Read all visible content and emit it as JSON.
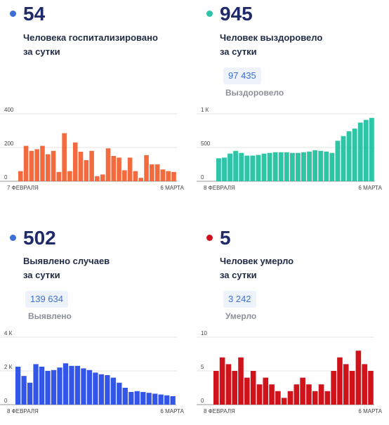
{
  "panels": [
    {
      "number": "54",
      "caption1": "Человека госпитализировано",
      "caption2": "за сутки",
      "dot_color": "#3b6fd6",
      "bar_color": "#f26a3d"
    },
    {
      "number": "945",
      "caption1": "Человек выздоровело",
      "caption2": "за сутки",
      "total": "97 435",
      "total_label": "Выздоровело",
      "dot_color": "#2ec4a6",
      "bar_color": "#2ec4a6"
    },
    {
      "number": "502",
      "caption1": "Выявлено случаев",
      "caption2": "за сутки",
      "total": "139 634",
      "total_label": "Выявлено",
      "dot_color": "#3b6fd6",
      "bar_color": "#3355e8"
    },
    {
      "number": "5",
      "caption1": "Человек умерло",
      "caption2": "за сутки",
      "total": "3 242",
      "total_label": "Умерло",
      "dot_color": "#d0121b",
      "bar_color": "#d0121b"
    }
  ],
  "chart_data": [
    {
      "type": "bar",
      "x_start_label": "7 ФЕВРАЛЯ",
      "x_end_label": "6 МАРТА",
      "ylim": [
        0,
        400
      ],
      "yticks": [
        "400",
        "200",
        "0"
      ],
      "yticks_values": [
        400,
        200,
        0
      ],
      "grid": true,
      "values": [
        60,
        210,
        180,
        190,
        210,
        160,
        180,
        55,
        285,
        60,
        230,
        175,
        125,
        180,
        30,
        40,
        195,
        150,
        140,
        65,
        140,
        60,
        20,
        155,
        100,
        100,
        70,
        60,
        55
      ]
    },
    {
      "type": "bar",
      "x_start_label": "8 ФЕВРАЛЯ",
      "x_end_label": "6 МАРТА",
      "ylim": [
        0,
        1000
      ],
      "yticks": [
        "1 К",
        "500",
        "0"
      ],
      "yticks_values": [
        1000,
        500,
        0
      ],
      "grid": true,
      "values": [
        340,
        350,
        410,
        450,
        420,
        380,
        380,
        390,
        410,
        420,
        430,
        430,
        430,
        420,
        420,
        430,
        440,
        460,
        450,
        440,
        420,
        600,
        670,
        740,
        780,
        870,
        910,
        940
      ]
    },
    {
      "type": "bar",
      "x_start_label": "8 ФЕВРАЛЯ",
      "x_end_label": "6 МАРТА",
      "ylim": [
        0,
        4000
      ],
      "yticks": [
        "4 К",
        "2 К",
        "0"
      ],
      "yticks_values": [
        4000,
        2000,
        0
      ],
      "grid": true,
      "values": [
        2250,
        1700,
        1300,
        2400,
        2250,
        2000,
        2050,
        2200,
        2450,
        2300,
        2300,
        2150,
        2050,
        1900,
        1800,
        1750,
        1600,
        1300,
        1000,
        750,
        800,
        750,
        700,
        650,
        600,
        550,
        500
      ]
    },
    {
      "type": "bar",
      "x_start_label": "8 ФЕВРАЛЯ",
      "x_end_label": "6 МАРТА",
      "ylim": [
        0,
        10
      ],
      "yticks": [
        "10",
        "5",
        "0"
      ],
      "yticks_values": [
        10,
        5,
        0
      ],
      "grid": true,
      "values": [
        5,
        7,
        6,
        5,
        7,
        4,
        5,
        3,
        4,
        3,
        2,
        1,
        2,
        3,
        4,
        3,
        2,
        3,
        2,
        5,
        7,
        6,
        5,
        8,
        6,
        5
      ]
    }
  ]
}
